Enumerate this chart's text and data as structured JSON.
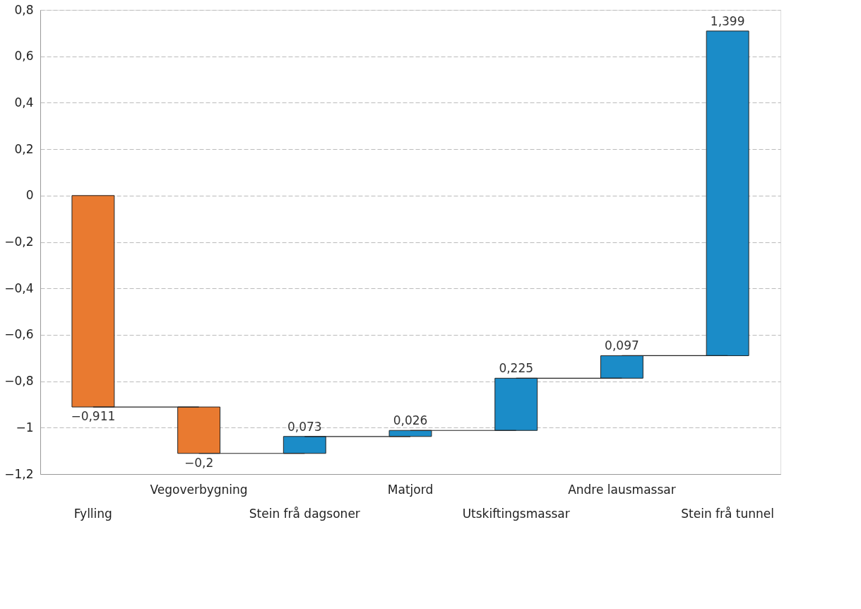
{
  "chart_data": {
    "type": "bar",
    "categories": [
      "Fylling",
      "Vegoverbygning",
      "Stein frå dagsoner",
      "Matjord",
      "Utskiftingsmassar",
      "Andre lausmassar",
      "Stein frå tunnel"
    ],
    "values": [
      -0.911,
      -0.2,
      0.073,
      0.026,
      0.225,
      0.097,
      1.399
    ],
    "base": [
      0,
      -0.911,
      -1.111,
      -1.038,
      -1.012,
      -0.787,
      -0.69
    ],
    "colors": [
      "#e97a30",
      "#e97a30",
      "#1b8cc8",
      "#1b8cc8",
      "#1b8cc8",
      "#1b8cc8",
      "#1b8cc8"
    ],
    "value_labels": [
      "−0,911",
      "−0,2",
      "0,073",
      "0,026",
      "0,225",
      "0,097",
      "1,399"
    ],
    "ylim": [
      -1.2,
      0.8
    ],
    "yticks": [
      {
        "value": -1.2,
        "label": "−1,2"
      },
      {
        "value": -1,
        "label": "−1"
      },
      {
        "value": -0.8,
        "label": "−0,8"
      },
      {
        "value": -0.6,
        "label": "−0,6"
      },
      {
        "value": -0.4,
        "label": "−0,4"
      },
      {
        "value": -0.2,
        "label": "−0,2"
      },
      0,
      {
        "value": 0.2,
        "label": "0,2"
      },
      {
        "value": 0.4,
        "label": "0,4"
      },
      {
        "value": 0.6,
        "label": "0,6"
      },
      {
        "value": 0.8,
        "label": "0,8"
      }
    ],
    "grid": "y"
  }
}
